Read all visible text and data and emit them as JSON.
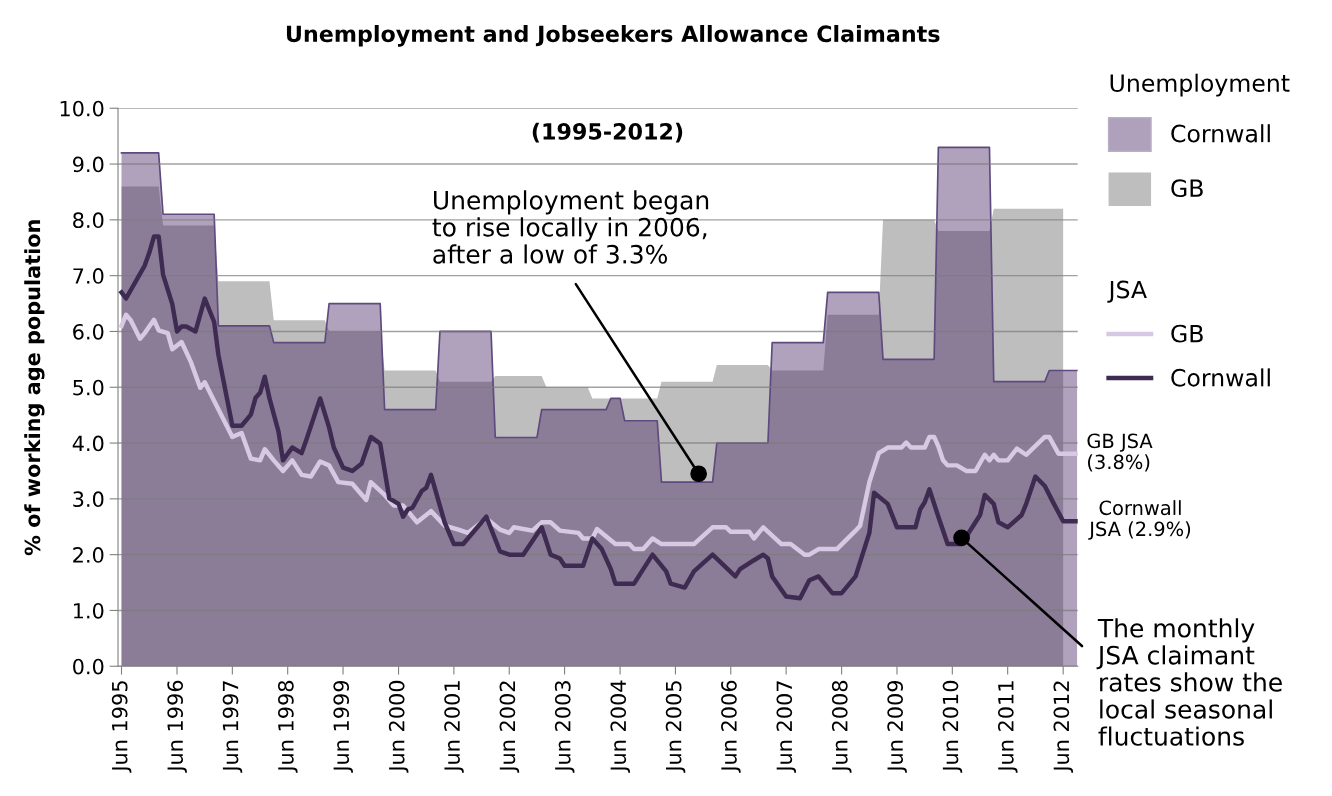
{
  "chart_data": {
    "type": "area",
    "title": "Unemployment and Jobseekers Allowance Claimants",
    "subtitle": "(1995-2012)",
    "ylabel": "% of working age population",
    "legend_title": "Unemployment",
    "annotations": [
      "JSA",
      {
        "text": "Unemployment began\nto rise locally in 2006,\nafter a low of 3.3%",
        "x": "2005-11",
        "y": 3.45
      },
      "GB JSA\n(3.8%)",
      "Cornwall\nJSA (2.9%)",
      {
        "text": "The monthly\nJSA claimant\nrates show the\nlocal seasonal\nfluctuations",
        "x": "2010-08",
        "y": 2.3
      }
    ],
    "xlim": [
      "1995-05-09",
      "2012-09-05"
    ],
    "xticks": [
      {
        "value": "1995-06",
        "label": "Jun 1995"
      },
      {
        "value": "1996-06",
        "label": "Jun 1996"
      },
      {
        "value": "1997-06",
        "label": "Jun 1997"
      },
      {
        "value": "1998-06",
        "label": "Jun 1998"
      },
      {
        "value": "1999-06",
        "label": "Jun 1999"
      },
      {
        "value": "2000-06",
        "label": "Jun 2000"
      },
      {
        "value": "2001-06",
        "label": "Jun 2001"
      },
      {
        "value": "2002-06",
        "label": "Jun 2002"
      },
      {
        "value": "2003-06",
        "label": "Jun 2003"
      },
      {
        "value": "2004-06",
        "label": "Jun 2004"
      },
      {
        "value": "2005-06",
        "label": "Jun 2005"
      },
      {
        "value": "2006-06",
        "label": "Jun 2006"
      },
      {
        "value": "2007-06",
        "label": "Jun 2007"
      },
      {
        "value": "2008-06",
        "label": "Jun 2008"
      },
      {
        "value": "2009-06",
        "label": "Jun 2009"
      },
      {
        "value": "2010-06",
        "label": "Jun 2010"
      },
      {
        "value": "2011-06",
        "label": "Jun 2011"
      },
      {
        "value": "2012-06",
        "label": "Jun 2012"
      }
    ],
    "ylim": [
      0,
      10
    ],
    "yticks": [
      {
        "value": 0,
        "label": "0.0"
      },
      {
        "value": 1,
        "label": "1.0"
      },
      {
        "value": 2,
        "label": "2.0"
      },
      {
        "value": 3,
        "label": "3.0"
      },
      {
        "value": 4,
        "label": "4.0"
      },
      {
        "value": 5,
        "label": "5.0"
      },
      {
        "value": 6,
        "label": "6.0"
      },
      {
        "value": 7,
        "label": "7.0"
      },
      {
        "value": 8,
        "label": "8.0"
      },
      {
        "value": 9,
        "label": "9.0"
      },
      {
        "value": 10,
        "label": "10.0"
      }
    ],
    "grid": "y",
    "legend": "right",
    "series": [
      {
        "name": "GB",
        "color": "#bebebe",
        "x": [
          "1995-06",
          "1996-02",
          "1996-03",
          "1997-02",
          "1997-03",
          "1998-02",
          "1998-03",
          "1999-02",
          "1999-03",
          "2000-02",
          "2000-03",
          "2001-02",
          "2001-03",
          "2002-02",
          "2002-03",
          "2003-01",
          "2003-02",
          "2003-11",
          "2003-12",
          "2005-02",
          "2005-03",
          "2006-02",
          "2006-03",
          "2007-02",
          "2007-03",
          "2008-02",
          "2008-03",
          "2009-02",
          "2009-03",
          "2010-02",
          "2010-03",
          "2011-02",
          "2011-03",
          "2012-06"
        ],
        "values": [
          8.6,
          8.6,
          7.9,
          7.9,
          6.9,
          6.9,
          6.2,
          6.2,
          6.0,
          6.0,
          5.3,
          5.3,
          5.1,
          5.1,
          5.2,
          5.2,
          5.0,
          5.0,
          4.8,
          4.8,
          5.1,
          5.1,
          5.4,
          5.4,
          5.3,
          5.3,
          6.3,
          6.3,
          8.0,
          8.0,
          7.8,
          7.8,
          8.2,
          8.2
        ]
      },
      {
        "name": "Cornwall",
        "color": "#472766",
        "x": [
          "1995-06",
          "1996-02",
          "1996-03",
          "1997-02",
          "1997-03",
          "1998-02",
          "1998-03",
          "1999-02",
          "1999-03",
          "2000-02",
          "2000-03",
          "2001-02",
          "2001-03",
          "2002-02",
          "2002-03",
          "2002-12",
          "2003-01",
          "2004-03",
          "2004-04",
          "2004-06",
          "2004-07",
          "2005-02",
          "2005-03",
          "2006-02",
          "2006-03",
          "2007-02",
          "2007-03",
          "2008-02",
          "2008-03",
          "2009-02",
          "2009-03",
          "2010-02",
          "2010-03",
          "2011-02",
          "2011-03",
          "2012-02",
          "2012-03",
          "2012-09"
        ],
        "values": [
          9.2,
          9.2,
          8.1,
          8.1,
          6.1,
          6.1,
          5.8,
          5.8,
          6.5,
          6.5,
          4.6,
          4.6,
          6.0,
          6.0,
          4.1,
          4.1,
          4.6,
          4.6,
          4.8,
          4.8,
          4.4,
          4.4,
          3.3,
          3.3,
          4.0,
          4.0,
          5.8,
          5.8,
          6.7,
          6.7,
          5.5,
          5.5,
          9.3,
          9.3,
          5.1,
          5.1,
          5.3,
          5.3
        ]
      },
      {
        "type": "line",
        "name": "GB",
        "color": "#d7c9e3",
        "x": [
          "1995-06",
          "1995-07",
          "1995-08",
          "1995-10",
          "1995-11",
          "1996-01",
          "1996-02",
          "1996-04",
          "1996-05",
          "1996-07",
          "1996-09",
          "1996-11",
          "1996-12",
          "1997-06",
          "1997-08",
          "1997-10",
          "1997-12",
          "1998-01",
          "1998-03",
          "1998-05",
          "1998-07",
          "1998-09",
          "1998-11",
          "1999-01",
          "1999-03",
          "1999-05",
          "1999-08",
          "1999-11",
          "1999-12",
          "2000-03",
          "2000-05",
          "2000-07",
          "2000-10",
          "2001-01",
          "2001-04",
          "2001-07",
          "2001-09",
          "2002-01",
          "2002-04",
          "2002-06",
          "2002-07",
          "2002-11",
          "2003-01",
          "2003-03",
          "2003-05",
          "2003-09",
          "2003-10",
          "2003-12",
          "2004-01",
          "2004-05",
          "2004-08",
          "2004-09",
          "2004-11",
          "2005-01",
          "2005-03",
          "2005-10",
          "2006-02",
          "2006-05",
          "2006-06",
          "2006-10",
          "2006-11",
          "2007-01",
          "2007-05",
          "2007-07",
          "2007-10",
          "2007-11",
          "2008-01",
          "2008-05",
          "2008-09",
          "2008-10",
          "2008-12",
          "2009-02",
          "2009-04",
          "2009-07",
          "2009-08",
          "2009-09",
          "2009-12",
          "2010-01",
          "2010-02",
          "2010-03",
          "2010-04",
          "2010-05",
          "2010-07",
          "2010-09",
          "2010-11",
          "2011-01",
          "2011-02",
          "2011-03",
          "2011-04",
          "2011-06",
          "2011-08",
          "2011-10",
          "2012-02",
          "2012-03",
          "2012-05",
          "2012-09"
        ],
        "values": [
          6.1,
          6.3,
          6.2,
          5.87,
          5.97,
          6.21,
          6.02,
          5.97,
          5.68,
          5.81,
          5.45,
          4.99,
          5.09,
          4.11,
          4.18,
          3.72,
          3.69,
          3.89,
          3.69,
          3.5,
          3.69,
          3.43,
          3.4,
          3.67,
          3.6,
          3.3,
          3.27,
          2.98,
          3.3,
          3.07,
          2.88,
          2.88,
          2.58,
          2.78,
          2.52,
          2.45,
          2.39,
          2.65,
          2.45,
          2.39,
          2.49,
          2.43,
          2.58,
          2.58,
          2.43,
          2.39,
          2.29,
          2.29,
          2.46,
          2.19,
          2.19,
          2.1,
          2.1,
          2.29,
          2.19,
          2.19,
          2.49,
          2.49,
          2.41,
          2.41,
          2.29,
          2.49,
          2.19,
          2.19,
          2.0,
          2.0,
          2.1,
          2.1,
          2.43,
          2.52,
          3.3,
          3.82,
          3.92,
          3.92,
          4.01,
          3.92,
          3.92,
          4.11,
          4.11,
          3.94,
          3.69,
          3.6,
          3.6,
          3.5,
          3.5,
          3.79,
          3.69,
          3.79,
          3.69,
          3.69,
          3.9,
          3.79,
          4.11,
          4.11,
          3.81,
          3.81
        ]
      },
      {
        "type": "line",
        "name": "Cornwall",
        "color": "#3f2b52",
        "x": [
          "1995-06",
          "1995-07",
          "1995-09",
          "1995-11",
          "1995-12",
          "1996-01",
          "1996-02",
          "1996-03",
          "1996-05",
          "1996-06",
          "1996-07",
          "1996-08",
          "1996-10",
          "1996-12",
          "1997-02",
          "1997-03",
          "1997-06",
          "1997-08",
          "1997-10",
          "1997-11",
          "1997-12",
          "1998-01",
          "1998-02",
          "1998-04",
          "1998-05",
          "1998-07",
          "1998-09",
          "1998-10",
          "1999-01",
          "1999-03",
          "1999-04",
          "1999-06",
          "1999-08",
          "1999-10",
          "1999-12",
          "2000-02",
          "2000-04",
          "2000-06",
          "2000-07",
          "2000-08",
          "2000-09",
          "2000-11",
          "2000-12",
          "2001-01",
          "2001-04",
          "2001-06",
          "2001-08",
          "2002-01",
          "2002-04",
          "2002-06",
          "2002-09",
          "2003-01",
          "2003-03",
          "2003-05",
          "2003-06",
          "2003-10",
          "2003-12",
          "2004-02",
          "2004-04",
          "2004-05",
          "2004-09",
          "2005-01",
          "2005-04",
          "2005-05",
          "2005-08",
          "2005-10",
          "2006-02",
          "2006-07",
          "2006-08",
          "2006-11",
          "2007-01",
          "2007-02",
          "2007-03",
          "2007-06",
          "2007-09",
          "2007-11",
          "2008-01",
          "2008-04",
          "2008-06",
          "2008-09",
          "2008-12",
          "2009-01",
          "2009-04",
          "2009-06",
          "2009-10",
          "2009-11",
          "2009-12",
          "2010-01",
          "2010-03",
          "2010-05",
          "2010-08",
          "2010-12",
          "2011-01",
          "2011-03",
          "2011-04",
          "2011-06",
          "2011-09",
          "2011-10",
          "2011-12",
          "2012-02",
          "2012-04",
          "2012-06",
          "2012-09"
        ],
        "values": [
          6.7,
          6.59,
          6.89,
          7.18,
          7.41,
          7.7,
          7.7,
          7.02,
          6.49,
          6.0,
          6.09,
          6.09,
          6.0,
          6.59,
          6.17,
          5.58,
          4.31,
          4.31,
          4.51,
          4.81,
          4.9,
          5.19,
          4.8,
          4.21,
          3.69,
          3.92,
          3.82,
          4.05,
          4.8,
          4.28,
          3.92,
          3.56,
          3.5,
          3.63,
          4.11,
          3.99,
          3.01,
          2.91,
          2.68,
          2.81,
          2.84,
          3.14,
          3.2,
          3.43,
          2.58,
          2.19,
          2.19,
          2.68,
          2.06,
          2.0,
          2.0,
          2.49,
          2.0,
          1.93,
          1.8,
          1.8,
          2.29,
          2.1,
          1.74,
          1.48,
          1.48,
          2.0,
          1.7,
          1.48,
          1.41,
          1.7,
          2.0,
          1.61,
          1.74,
          1.9,
          2.0,
          1.93,
          1.61,
          1.25,
          1.22,
          1.54,
          1.61,
          1.31,
          1.31,
          1.61,
          2.39,
          3.11,
          2.91,
          2.49,
          2.49,
          2.81,
          2.94,
          3.17,
          2.68,
          2.19,
          2.19,
          2.71,
          3.07,
          2.91,
          2.58,
          2.49,
          2.71,
          2.91,
          3.4,
          3.23,
          2.91,
          2.6,
          2.6
        ]
      }
    ]
  }
}
